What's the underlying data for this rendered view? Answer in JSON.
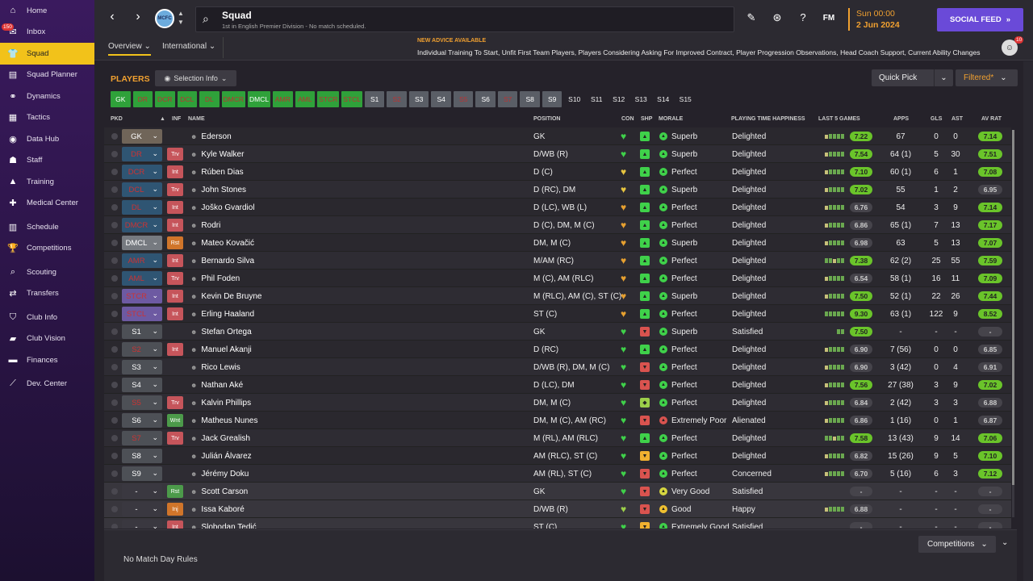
{
  "sidebar": {
    "items": [
      {
        "label": "Home",
        "icon": "home-icon",
        "glyph": "⌂"
      },
      {
        "label": "Inbox",
        "icon": "inbox-icon",
        "glyph": "✉",
        "badge": "150"
      },
      {
        "label": "Squad",
        "icon": "shirt-icon",
        "glyph": "👕",
        "active": true
      },
      {
        "label": "Squad Planner",
        "icon": "planner-icon",
        "glyph": "▤"
      },
      {
        "label": "Dynamics",
        "icon": "dynamics-icon",
        "glyph": "⚭"
      },
      {
        "label": "Tactics",
        "icon": "tactics-icon",
        "glyph": "▦"
      },
      {
        "label": "Data Hub",
        "icon": "data-hub-icon",
        "glyph": "◉"
      },
      {
        "label": "Staff",
        "icon": "staff-icon",
        "glyph": "☗"
      },
      {
        "label": "Training",
        "icon": "training-icon",
        "glyph": "▲"
      },
      {
        "label": "Medical Center",
        "icon": "medical-icon",
        "glyph": "✚"
      },
      {
        "label": "Schedule",
        "icon": "calendar-icon",
        "glyph": "▥",
        "gap": true
      },
      {
        "label": "Competitions",
        "icon": "trophy-icon",
        "glyph": "🏆"
      },
      {
        "label": "Scouting",
        "icon": "binoculars-icon",
        "glyph": "⌕",
        "gap": true
      },
      {
        "label": "Transfers",
        "icon": "transfer-icon",
        "glyph": "⇄"
      },
      {
        "label": "Club Info",
        "icon": "shield-icon",
        "glyph": "⛉",
        "gap": true
      },
      {
        "label": "Club Vision",
        "icon": "vision-icon",
        "glyph": "▰"
      },
      {
        "label": "Finances",
        "icon": "finances-icon",
        "glyph": "▬"
      },
      {
        "label": "Dev. Center",
        "icon": "dev-center-icon",
        "glyph": "⟋",
        "gap": true
      }
    ]
  },
  "topbar": {
    "title": "Squad",
    "subtitle": "1st in English Premier Division - No match scheduled.",
    "crest_text": "MCFC",
    "fm_label": "FM",
    "date_line1": "Sun 00:00",
    "date_line2": "2 Jun 2024",
    "social_feed": "SOCIAL FEED",
    "tabs": [
      "Overview",
      "International"
    ],
    "advice_title": "NEW ADVICE AVAILABLE",
    "advice_text": "Individual Training To Start, Unfit First Team Players, Players Considering Asking For Improved Contract, Player Progression Observations, Head Coach Support, Current Ability Changes",
    "user_badge": "10"
  },
  "main": {
    "players_title": "PLAYERS",
    "selection_info": "Selection Info",
    "quick_pick": "Quick Pick",
    "filtered": "Filtered*"
  },
  "positions": [
    {
      "label": "GK",
      "style": "g"
    },
    {
      "label": "DR",
      "style": "gr"
    },
    {
      "label": "DCR",
      "style": "gr"
    },
    {
      "label": "DCL",
      "style": "gr"
    },
    {
      "label": "DL",
      "style": "gr"
    },
    {
      "label": "DMCR",
      "style": "gr"
    },
    {
      "label": "DMCL",
      "style": "g"
    },
    {
      "label": "AMR",
      "style": "gr"
    },
    {
      "label": "AML",
      "style": "gr"
    },
    {
      "label": "STCR",
      "style": "gr"
    },
    {
      "label": "STCL",
      "style": "gr"
    },
    {
      "label": "S1",
      "style": "s"
    },
    {
      "label": "S2",
      "style": "sr"
    },
    {
      "label": "S3",
      "style": "s"
    },
    {
      "label": "S4",
      "style": "s"
    },
    {
      "label": "S5",
      "style": "sr"
    },
    {
      "label": "S6",
      "style": "s"
    },
    {
      "label": "S7",
      "style": "sr"
    },
    {
      "label": "S8",
      "style": "s"
    },
    {
      "label": "S9",
      "style": "s"
    },
    {
      "label": "S10",
      "style": "n"
    },
    {
      "label": "S11",
      "style": "n"
    },
    {
      "label": "S12",
      "style": "n"
    },
    {
      "label": "S13",
      "style": "n"
    },
    {
      "label": "S14",
      "style": "n"
    },
    {
      "label": "S15",
      "style": "n"
    }
  ],
  "columns": [
    "PKD",
    "INF",
    "NAME",
    "POSITION",
    "CON",
    "SHP",
    "MORALE",
    "PLAYING TIME HAPPINESS",
    "LAST 5 GAMES",
    "APPS",
    "GLS",
    "AST",
    "AV RAT"
  ],
  "players": [
    {
      "pkd": "GK",
      "pk": "gk",
      "inf": "",
      "name": "Ederson",
      "pos": "GK",
      "con": "#3fd14a",
      "shp": "#3fd14a",
      "shpg": "▲",
      "mi": "#3fd14a",
      "morale": "Superb",
      "pth": "Delighted",
      "l5": "yggg",
      "rat": "7.22",
      "rg": 1,
      "apps": "67",
      "gls": "0",
      "ast": "0",
      "av": "7.14",
      "ag": 1
    },
    {
      "pkd": "DR",
      "pk": "dl",
      "inf": "Trv",
      "ic": "inf-red",
      "name": "Kyle Walker",
      "pos": "D/WB (R)",
      "con": "#3fd14a",
      "shp": "#3fd14a",
      "shpg": "▲",
      "mi": "#3fd14a",
      "morale": "Superb",
      "pth": "Delighted",
      "l5": "yggg",
      "rat": "7.54",
      "rg": 1,
      "apps": "64 (1)",
      "gls": "5",
      "ast": "30",
      "av": "7.51",
      "ag": 1
    },
    {
      "pkd": "DCR",
      "pk": "dl",
      "inf": "Int",
      "ic": "inf-red",
      "name": "Rúben Dias",
      "pos": "D (C)",
      "con": "#e6c440",
      "shp": "#3fd14a",
      "shpg": "▲",
      "mi": "#3fd14a",
      "morale": "Perfect",
      "pth": "Delighted",
      "l5": "yggg",
      "rat": "7.10",
      "rg": 1,
      "apps": "60 (1)",
      "gls": "6",
      "ast": "1",
      "av": "7.08",
      "ag": 1
    },
    {
      "pkd": "DCL",
      "pk": "dl",
      "inf": "Trv",
      "ic": "inf-red",
      "name": "John Stones",
      "pos": "D (RC), DM",
      "con": "#e6c440",
      "shp": "#3fd14a",
      "shpg": "▲",
      "mi": "#3fd14a",
      "morale": "Superb",
      "pth": "Delighted",
      "l5": "yggg",
      "rat": "7.02",
      "rg": 1,
      "apps": "55",
      "gls": "1",
      "ast": "2",
      "av": "6.95",
      "ag": 0
    },
    {
      "pkd": "DL",
      "pk": "dl",
      "inf": "Int",
      "ic": "inf-red",
      "name": "Joško Gvardiol",
      "pos": "D (LC), WB (L)",
      "con": "#e6a030",
      "shp": "#3fd14a",
      "shpg": "▲",
      "mi": "#3fd14a",
      "morale": "Perfect",
      "pth": "Delighted",
      "l5": "yggg",
      "rat": "6.76",
      "rg": 0,
      "apps": "54",
      "gls": "3",
      "ast": "9",
      "av": "7.14",
      "ag": 1
    },
    {
      "pkd": "DMCR",
      "pk": "dl",
      "inf": "Int",
      "ic": "inf-red",
      "name": "Rodri",
      "pos": "D (C), DM, M (C)",
      "con": "#e6a030",
      "shp": "#3fd14a",
      "shpg": "▲",
      "mi": "#3fd14a",
      "morale": "Perfect",
      "pth": "Delighted",
      "l5": "yggg",
      "rat": "6.86",
      "rg": 0,
      "apps": "65 (1)",
      "gls": "7",
      "ast": "13",
      "av": "7.17",
      "ag": 1
    },
    {
      "pkd": "DMCL",
      "pk": "dm",
      "inf": "Rst",
      "ic": "inf-orange",
      "name": "Mateo Kovačić",
      "pos": "DM, M (C)",
      "con": "#e6a030",
      "shp": "#3fd14a",
      "shpg": "▲",
      "mi": "#3fd14a",
      "morale": "Superb",
      "pth": "Delighted",
      "l5": "yggg",
      "rat": "6.98",
      "rg": 0,
      "apps": "63",
      "gls": "5",
      "ast": "13",
      "av": "7.07",
      "ag": 1
    },
    {
      "pkd": "AMR",
      "pk": "dl",
      "inf": "Int",
      "ic": "inf-red",
      "name": "Bernardo Silva",
      "pos": "M/AM (RC)",
      "con": "#e6a030",
      "shp": "#3fd14a",
      "shpg": "▲",
      "mi": "#3fd14a",
      "morale": "Perfect",
      "pth": "Delighted",
      "l5": "ggyg",
      "rat": "7.38",
      "rg": 1,
      "apps": "62 (2)",
      "gls": "25",
      "ast": "55",
      "av": "7.59",
      "ag": 1
    },
    {
      "pkd": "AML",
      "pk": "dl",
      "inf": "Trv",
      "ic": "inf-red",
      "name": "Phil Foden",
      "pos": "M (C), AM (RLC)",
      "con": "#e6a030",
      "shp": "#3fd14a",
      "shpg": "▲",
      "mi": "#3fd14a",
      "morale": "Perfect",
      "pth": "Delighted",
      "l5": "yggg",
      "rat": "6.54",
      "rg": 0,
      "apps": "58 (1)",
      "gls": "16",
      "ast": "11",
      "av": "7.09",
      "ag": 1
    },
    {
      "pkd": "STCR",
      "pk": "st",
      "inf": "Int",
      "ic": "inf-red",
      "name": "Kevin De Bruyne",
      "pos": "M (RLC), AM (C), ST (C)",
      "con": "#e6a030",
      "shp": "#3fd14a",
      "shpg": "▲",
      "mi": "#3fd14a",
      "morale": "Superb",
      "pth": "Delighted",
      "l5": "yggg",
      "rat": "7.50",
      "rg": 1,
      "apps": "52 (1)",
      "gls": "22",
      "ast": "26",
      "av": "7.44",
      "ag": 1
    },
    {
      "pkd": "STCL",
      "pk": "st",
      "inf": "Int",
      "ic": "inf-red",
      "name": "Erling Haaland",
      "pos": "ST (C)",
      "con": "#e6a030",
      "shp": "#3fd14a",
      "shpg": "▲",
      "mi": "#3fd14a",
      "morale": "Perfect",
      "pth": "Delighted",
      "l5": "gggg",
      "rat": "9.30",
      "rg": 1,
      "apps": "63 (1)",
      "gls": "122",
      "ast": "9",
      "av": "8.52",
      "ag": 1
    },
    {
      "pkd": "S1",
      "pk": "sub",
      "inf": "",
      "name": "Stefan Ortega",
      "pos": "GK",
      "con": "#3fd14a",
      "shp": "#d9534f",
      "shpg": "▼",
      "mi": "#3fd14a",
      "morale": "Superb",
      "pth": "Satisfied",
      "l5": "g",
      "rat": "7.50",
      "rg": 1,
      "apps": "-",
      "gls": "-",
      "ast": "-",
      "av": "-",
      "ag": 0
    },
    {
      "pkd": "S2",
      "pk": "subr",
      "inf": "Int",
      "ic": "inf-red",
      "name": "Manuel Akanji",
      "pos": "D (RC)",
      "con": "#3fd14a",
      "shp": "#3fd14a",
      "shpg": "▲",
      "mi": "#3fd14a",
      "morale": "Perfect",
      "pth": "Delighted",
      "l5": "yggg",
      "rat": "6.90",
      "rg": 0,
      "apps": "7 (56)",
      "gls": "0",
      "ast": "0",
      "av": "6.85",
      "ag": 0
    },
    {
      "pkd": "S3",
      "pk": "sub",
      "inf": "",
      "name": "Rico Lewis",
      "pos": "D/WB (R), DM, M (C)",
      "con": "#3fd14a",
      "shp": "#d9534f",
      "shpg": "▼",
      "mi": "#3fd14a",
      "morale": "Perfect",
      "pth": "Delighted",
      "l5": "yggg",
      "rat": "6.90",
      "rg": 0,
      "apps": "3 (42)",
      "gls": "0",
      "ast": "4",
      "av": "6.91",
      "ag": 0
    },
    {
      "pkd": "S4",
      "pk": "sub",
      "inf": "",
      "name": "Nathan Aké",
      "pos": "D (LC), DM",
      "con": "#3fd14a",
      "shp": "#d9534f",
      "shpg": "▼",
      "mi": "#3fd14a",
      "morale": "Perfect",
      "pth": "Delighted",
      "l5": "yggg",
      "rat": "7.56",
      "rg": 1,
      "apps": "27 (38)",
      "gls": "3",
      "ast": "9",
      "av": "7.02",
      "ag": 1
    },
    {
      "pkd": "S5",
      "pk": "subr",
      "inf": "Trv",
      "ic": "inf-red",
      "name": "Kalvin Phillips",
      "pos": "DM, M (C)",
      "con": "#3fd14a",
      "shp": "#9ccf4a",
      "shpg": "◆",
      "mi": "#3fd14a",
      "morale": "Perfect",
      "pth": "Delighted",
      "l5": "yggg",
      "rat": "6.84",
      "rg": 0,
      "apps": "2 (42)",
      "gls": "3",
      "ast": "3",
      "av": "6.88",
      "ag": 0
    },
    {
      "pkd": "S6",
      "pk": "sub",
      "inf": "Wnt",
      "ic": "inf-green",
      "name": "Matheus Nunes",
      "pos": "DM, M (C), AM (RC)",
      "con": "#3fd14a",
      "shp": "#d9534f",
      "shpg": "▼",
      "mi": "#d9534f",
      "morale": "Extremely Poor",
      "pth": "Alienated",
      "l5": "yggg",
      "rat": "6.86",
      "rg": 0,
      "apps": "1 (16)",
      "gls": "0",
      "ast": "1",
      "av": "6.87",
      "ag": 0
    },
    {
      "pkd": "S7",
      "pk": "subr",
      "inf": "Trv",
      "ic": "inf-red",
      "name": "Jack Grealish",
      "pos": "M (RL), AM (RLC)",
      "con": "#3fd14a",
      "shp": "#3fd14a",
      "shpg": "▲",
      "mi": "#3fd14a",
      "morale": "Perfect",
      "pth": "Delighted",
      "l5": "ggyg",
      "rat": "7.58",
      "rg": 1,
      "apps": "13 (43)",
      "gls": "9",
      "ast": "14",
      "av": "7.06",
      "ag": 1
    },
    {
      "pkd": "S8",
      "pk": "sub",
      "inf": "",
      "name": "Julián Álvarez",
      "pos": "AM (RLC), ST (C)",
      "con": "#3fd14a",
      "shp": "#f0b030",
      "shpg": "▼",
      "mi": "#3fd14a",
      "morale": "Perfect",
      "pth": "Delighted",
      "l5": "yggg",
      "rat": "6.82",
      "rg": 0,
      "apps": "15 (26)",
      "gls": "9",
      "ast": "5",
      "av": "7.10",
      "ag": 1
    },
    {
      "pkd": "S9",
      "pk": "sub",
      "inf": "",
      "name": "Jérémy Doku",
      "pos": "AM (RL), ST (C)",
      "con": "#3fd14a",
      "shp": "#d9534f",
      "shpg": "▼",
      "mi": "#3fd14a",
      "morale": "Perfect",
      "pth": "Concerned",
      "l5": "yggg",
      "rat": "6.70",
      "rg": 0,
      "apps": "5 (16)",
      "gls": "6",
      "ast": "3",
      "av": "7.12",
      "ag": 1
    },
    {
      "pkd": "-",
      "pk": "res",
      "inf": "Rst",
      "ic": "inf-green",
      "name": "Scott Carson",
      "pos": "GK",
      "con": "#3fd14a",
      "shp": "#d9534f",
      "shpg": "▼",
      "mi": "#d6d640",
      "morale": "Very Good",
      "pth": "Satisfied",
      "l5": "",
      "rat": "-",
      "rg": 0,
      "apps": "-",
      "gls": "-",
      "ast": "-",
      "av": "-",
      "ag": 0,
      "light": true
    },
    {
      "pkd": "-",
      "pk": "res",
      "inf": "Inj",
      "ic": "inf-orange",
      "name": "Issa Kaboré",
      "pos": "D/WB (R)",
      "con": "#9ccf4a",
      "shp": "#d9534f",
      "shpg": "▼",
      "mi": "#f0c030",
      "morale": "Good",
      "pth": "Happy",
      "l5": "yggg",
      "rat": "6.88",
      "rg": 0,
      "apps": "-",
      "gls": "-",
      "ast": "-",
      "av": "-",
      "ag": 0,
      "light": true
    },
    {
      "pkd": "-",
      "pk": "res",
      "inf": "Int",
      "ic": "inf-red",
      "name": "Slobodan Tedić",
      "pos": "ST (C)",
      "con": "#3fd14a",
      "shp": "#f0b030",
      "shpg": "▼",
      "mi": "#3fd14a",
      "morale": "Extremely Good",
      "pth": "Satisfied",
      "l5": "",
      "rat": "-",
      "rg": 0,
      "apps": "-",
      "gls": "-",
      "ast": "-",
      "av": "-",
      "ag": 0,
      "light": true
    }
  ],
  "footer": {
    "no_rules": "No Match Day Rules",
    "competitions": "Competitions"
  }
}
